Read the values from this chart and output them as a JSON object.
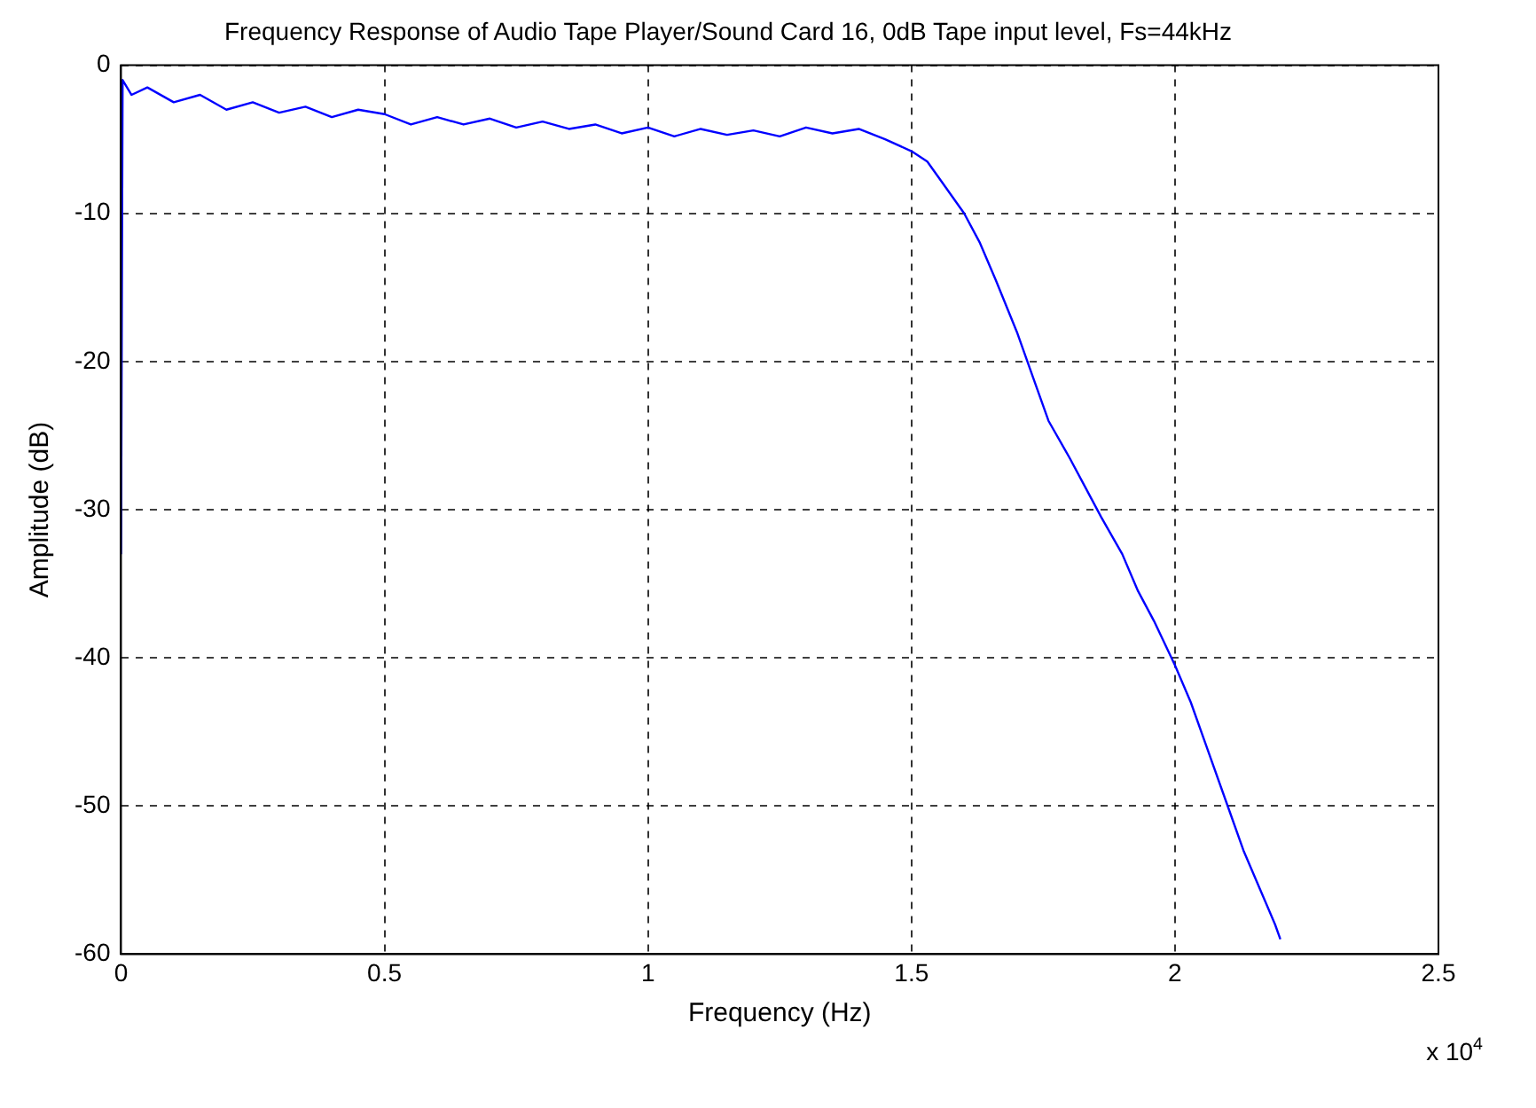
{
  "chart_data": {
    "type": "line",
    "title": "Frequency Response of Audio Tape Player/Sound Card 16, 0dB Tape input level, Fs=44kHz",
    "xlabel": "Frequency (Hz)",
    "ylabel": "Amplitude (dB)",
    "annotations": [
      "x 10$^{4}$"
    ],
    "x": [
      0,
      0.003,
      0.02,
      0.05,
      0.1,
      0.15,
      0.2,
      0.25,
      0.3,
      0.35,
      0.4,
      0.45,
      0.5,
      0.55,
      0.6,
      0.65,
      0.7,
      0.75,
      0.8,
      0.85,
      0.9,
      0.95,
      1.0,
      1.05,
      1.1,
      1.15,
      1.2,
      1.25,
      1.3,
      1.35,
      1.4,
      1.45,
      1.5,
      1.53,
      1.56,
      1.6,
      1.63,
      1.66,
      1.7,
      1.73,
      1.76,
      1.8,
      1.83,
      1.86,
      1.9,
      1.93,
      1.96,
      2.0,
      2.03,
      2.06,
      2.1,
      2.13,
      2.16,
      2.19,
      2.2
    ],
    "series": [
      {
        "color": "#0000ff",
        "values": [
          -33,
          -1,
          -2,
          -1.5,
          -2.5,
          -2,
          -3,
          -2.5,
          -3.2,
          -2.8,
          -3.5,
          -3,
          -3.3,
          -4,
          -3.5,
          -4,
          -3.6,
          -4.2,
          -3.8,
          -4.3,
          -4,
          -4.6,
          -4.2,
          -4.8,
          -4.3,
          -4.7,
          -4.4,
          -4.8,
          -4.2,
          -4.6,
          -4.3,
          -5,
          -5.8,
          -6.5,
          -8,
          -10,
          -12,
          -14.5,
          -18,
          -21,
          -24,
          -26.5,
          -28.5,
          -30.5,
          -33,
          -35.5,
          -37.5,
          -40.5,
          -43,
          -46,
          -50,
          -53,
          -55.5,
          -58,
          -59
        ]
      }
    ],
    "xlim": [
      0,
      2.5
    ],
    "xticks": [
      0,
      0.5,
      1,
      1.5,
      2,
      2.5
    ],
    "ylim": [
      -60,
      0
    ],
    "yticks": [
      -60,
      -50,
      -40,
      -30,
      -20,
      -10,
      0
    ],
    "grid": true,
    "legend": false,
    "marker": "none",
    "line_style": "solid"
  }
}
